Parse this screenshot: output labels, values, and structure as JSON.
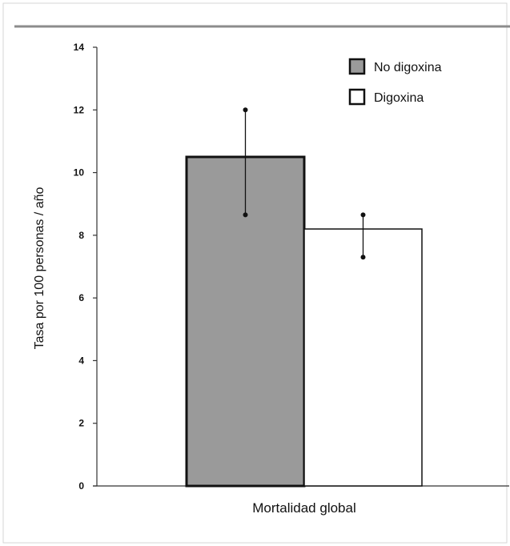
{
  "chart_data": {
    "type": "bar",
    "categories": [
      "Mortalidad global"
    ],
    "series": [
      {
        "name": "No digoxina",
        "values": [
          10.5
        ],
        "error_low": [
          8.65
        ],
        "error_high": [
          12.0
        ]
      },
      {
        "name": "Digoxina",
        "values": [
          8.2
        ],
        "error_low": [
          7.3
        ],
        "error_high": [
          8.65
        ]
      }
    ],
    "ylabel": "Tasa por 100 personas  / año",
    "xlabel": "",
    "ylim": [
      0,
      14
    ],
    "yticks": [
      0,
      2,
      4,
      6,
      8,
      10,
      12,
      14
    ],
    "grid": false,
    "legend": "top-right",
    "colors": {
      "No digoxina": "#9a9a9a",
      "Digoxina": "#ffffff",
      "outline": "#111111",
      "frame": "#bfbfbf"
    }
  }
}
